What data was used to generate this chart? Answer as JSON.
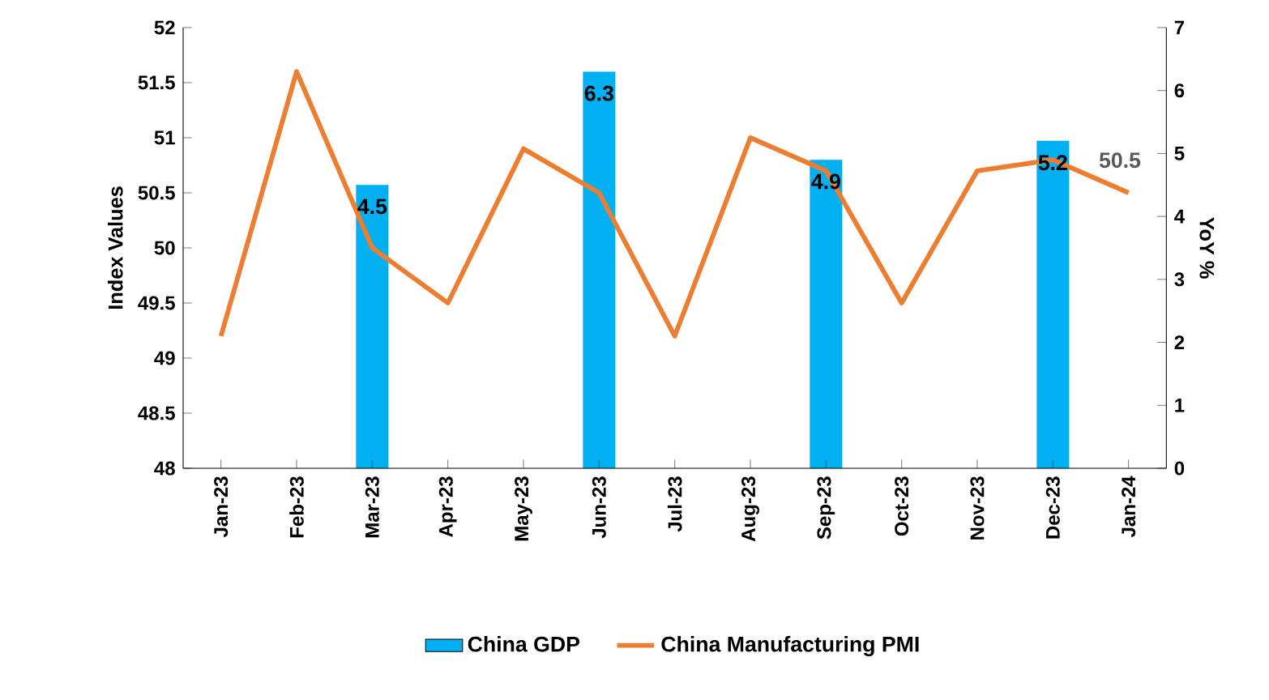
{
  "chart_data": {
    "type": "bar",
    "ylabel": "Index Values",
    "y2label": "YoY %",
    "categories": [
      "Jan-23",
      "Feb-23",
      "Mar-23",
      "Apr-23",
      "May-23",
      "Jun-23",
      "Jul-23",
      "Aug-23",
      "Sep-23",
      "Oct-23",
      "Nov-23",
      "Dec-23",
      "Jan-24"
    ],
    "series": [
      {
        "name": "China GDP",
        "axis": "y2",
        "color": "#00b0f0",
        "values": [
          null,
          null,
          4.5,
          null,
          null,
          6.3,
          null,
          null,
          4.9,
          null,
          null,
          5.2,
          null
        ],
        "value_labels": [
          null,
          null,
          "4.5",
          null,
          null,
          "6.3",
          null,
          null,
          "4.9",
          null,
          null,
          "5.2",
          null
        ]
      },
      {
        "name": "China Manufacturing PMI",
        "type": "line",
        "color": "#ed7d31",
        "values": [
          49.2,
          51.6,
          50.0,
          49.5,
          50.9,
          50.5,
          49.2,
          51.0,
          50.7,
          49.5,
          50.7,
          50.8,
          50.5
        ],
        "value_labels": [
          null,
          null,
          null,
          null,
          null,
          null,
          null,
          null,
          null,
          null,
          null,
          null,
          "50.5"
        ]
      }
    ],
    "ylim": [
      48,
      52
    ],
    "yticks": [
      48,
      48.5,
      49,
      49.5,
      50,
      50.5,
      51,
      51.5,
      52
    ],
    "y2lim": [
      0,
      7
    ],
    "y2ticks": [
      0,
      1,
      2,
      3,
      4,
      5,
      6,
      7
    ],
    "legend": "bottom",
    "grid": false
  }
}
